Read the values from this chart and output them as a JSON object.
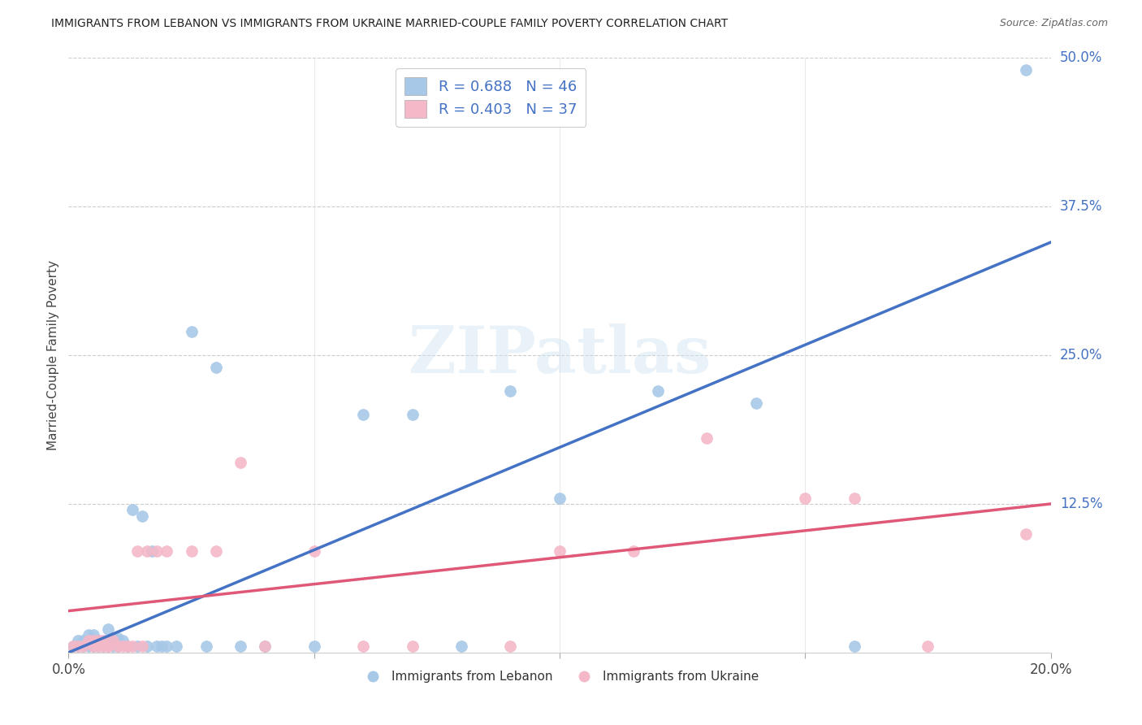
{
  "title": "IMMIGRANTS FROM LEBANON VS IMMIGRANTS FROM UKRAINE MARRIED-COUPLE FAMILY POVERTY CORRELATION CHART",
  "source": "Source: ZipAtlas.com",
  "ylabel": "Married-Couple Family Poverty",
  "xlim": [
    0.0,
    0.2
  ],
  "ylim": [
    0.0,
    0.5
  ],
  "lebanon_color": "#a8c8e8",
  "ukraine_color": "#f4b8c8",
  "lebanon_line_color": "#4472c4",
  "ukraine_line_color": "#e05878",
  "legend_R_lebanon": "R = 0.688",
  "legend_N_lebanon": "N = 46",
  "legend_R_ukraine": "R = 0.403",
  "legend_N_ukraine": "N = 37",
  "watermark_text": "ZIPatlas",
  "lebanon_scatter_x": [
    0.001,
    0.002,
    0.002,
    0.003,
    0.003,
    0.004,
    0.004,
    0.005,
    0.005,
    0.005,
    0.006,
    0.006,
    0.007,
    0.007,
    0.008,
    0.008,
    0.009,
    0.009,
    0.01,
    0.01,
    0.011,
    0.012,
    0.013,
    0.014,
    0.015,
    0.016,
    0.017,
    0.018,
    0.019,
    0.02,
    0.022,
    0.025,
    0.028,
    0.03,
    0.035,
    0.04,
    0.05,
    0.06,
    0.07,
    0.08,
    0.09,
    0.1,
    0.12,
    0.14,
    0.16,
    0.195
  ],
  "lebanon_scatter_y": [
    0.005,
    0.005,
    0.01,
    0.005,
    0.01,
    0.005,
    0.015,
    0.005,
    0.01,
    0.015,
    0.005,
    0.01,
    0.005,
    0.01,
    0.005,
    0.02,
    0.005,
    0.012,
    0.005,
    0.012,
    0.01,
    0.005,
    0.12,
    0.005,
    0.115,
    0.005,
    0.085,
    0.005,
    0.005,
    0.005,
    0.005,
    0.27,
    0.005,
    0.24,
    0.005,
    0.005,
    0.005,
    0.2,
    0.2,
    0.005,
    0.22,
    0.13,
    0.22,
    0.21,
    0.005,
    0.49
  ],
  "ukraine_scatter_x": [
    0.001,
    0.002,
    0.003,
    0.004,
    0.005,
    0.005,
    0.006,
    0.006,
    0.007,
    0.007,
    0.008,
    0.008,
    0.009,
    0.01,
    0.011,
    0.012,
    0.013,
    0.014,
    0.015,
    0.016,
    0.018,
    0.02,
    0.025,
    0.03,
    0.035,
    0.04,
    0.05,
    0.06,
    0.07,
    0.09,
    0.1,
    0.115,
    0.13,
    0.15,
    0.16,
    0.175,
    0.195
  ],
  "ukraine_scatter_y": [
    0.005,
    0.005,
    0.005,
    0.01,
    0.005,
    0.01,
    0.005,
    0.01,
    0.005,
    0.01,
    0.005,
    0.005,
    0.01,
    0.005,
    0.005,
    0.005,
    0.005,
    0.085,
    0.005,
    0.085,
    0.085,
    0.085,
    0.085,
    0.085,
    0.16,
    0.005,
    0.085,
    0.005,
    0.005,
    0.005,
    0.085,
    0.085,
    0.18,
    0.13,
    0.13,
    0.005,
    0.1
  ],
  "background_color": "#ffffff",
  "grid_color": "#cccccc",
  "leb_line_x0": 0.0,
  "leb_line_y0": 0.0,
  "leb_line_x1": 0.2,
  "leb_line_y1": 0.345,
  "ukr_line_x0": 0.0,
  "ukr_line_y0": 0.035,
  "ukr_line_x1": 0.2,
  "ukr_line_y1": 0.125
}
